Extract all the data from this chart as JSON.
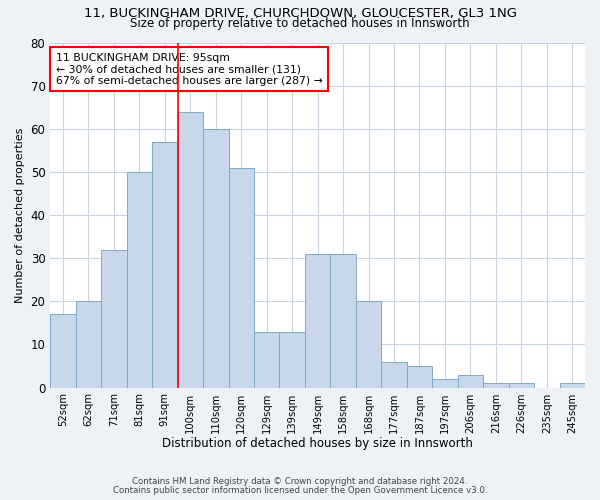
{
  "title1": "11, BUCKINGHAM DRIVE, CHURCHDOWN, GLOUCESTER, GL3 1NG",
  "title2": "Size of property relative to detached houses in Innsworth",
  "xlabel": "Distribution of detached houses by size in Innsworth",
  "ylabel": "Number of detached properties",
  "categories": [
    "52sqm",
    "62sqm",
    "71sqm",
    "81sqm",
    "91sqm",
    "100sqm",
    "110sqm",
    "120sqm",
    "129sqm",
    "139sqm",
    "149sqm",
    "158sqm",
    "168sqm",
    "177sqm",
    "187sqm",
    "197sqm",
    "206sqm",
    "216sqm",
    "226sqm",
    "235sqm",
    "245sqm"
  ],
  "values": [
    17,
    20,
    32,
    50,
    57,
    64,
    60,
    51,
    13,
    13,
    31,
    31,
    20,
    6,
    5,
    2,
    3,
    1,
    1,
    0,
    1
  ],
  "bar_color": "#c8d8ea",
  "bar_edge_color": "#7fa8c8",
  "vline_x": 4.5,
  "vline_color": "red",
  "annotation_text": "11 BUCKINGHAM DRIVE: 95sqm\n← 30% of detached houses are smaller (131)\n67% of semi-detached houses are larger (287) →",
  "annotation_box_color": "white",
  "annotation_box_edge": "red",
  "ylim": [
    0,
    80
  ],
  "yticks": [
    0,
    10,
    20,
    30,
    40,
    50,
    60,
    70,
    80
  ],
  "footer1": "Contains HM Land Registry data © Crown copyright and database right 2024.",
  "footer2": "Contains public sector information licensed under the Open Government Licence v3.0.",
  "bg_color": "#eef2f7",
  "plot_bg_color": "#ffffff",
  "grid_color": "#c8d4e0"
}
